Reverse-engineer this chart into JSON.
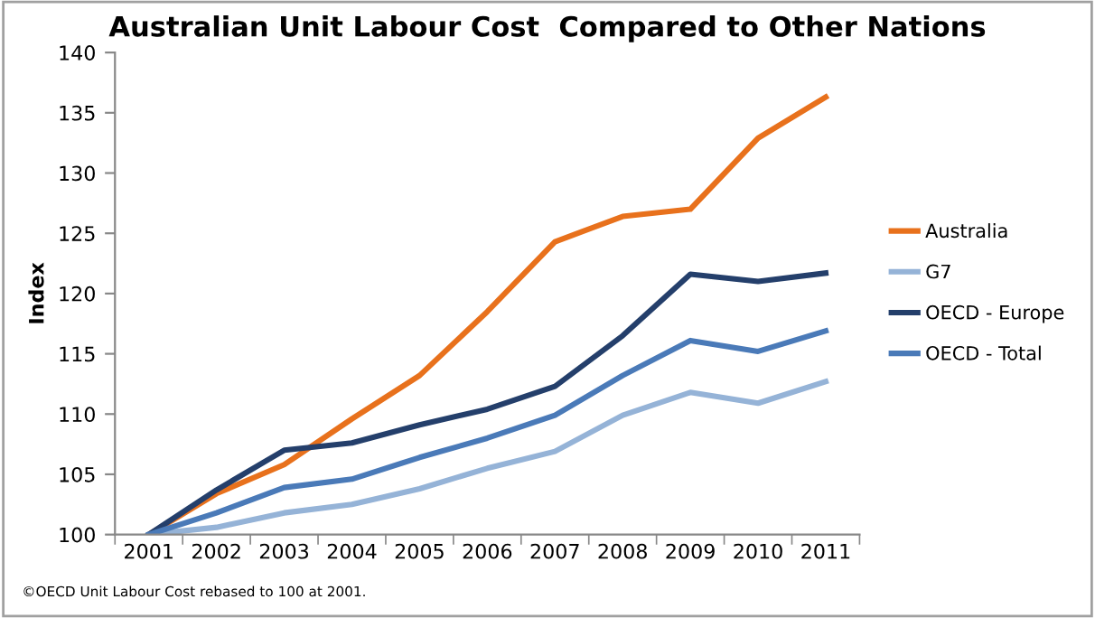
{
  "chart_data": {
    "type": "line",
    "title": "Australian Unit Labour Cost  Compared to Other Nations",
    "ylabel": "Index",
    "categories": [
      "2001",
      "2002",
      "2003",
      "2004",
      "2005",
      "2006",
      "2007",
      "2008",
      "2009",
      "2010",
      "2011"
    ],
    "series": [
      {
        "name": "Australia",
        "color": "#e8711c",
        "values": [
          100,
          103.4,
          105.8,
          109.6,
          113.2,
          118.5,
          124.3,
          126.4,
          127.0,
          132.9,
          136.3
        ]
      },
      {
        "name": "G7",
        "color": "#95b3d7",
        "values": [
          100,
          100.6,
          101.8,
          102.5,
          103.8,
          105.5,
          106.9,
          109.9,
          111.8,
          110.9,
          112.7
        ]
      },
      {
        "name": "OECD - Europe",
        "color": "#243f6b",
        "values": [
          100,
          103.7,
          107.0,
          107.6,
          109.1,
          110.4,
          112.3,
          116.5,
          121.6,
          121.0,
          121.7
        ]
      },
      {
        "name": "OECD - Total",
        "color": "#4a7ab8",
        "values": [
          100,
          101.8,
          103.9,
          104.6,
          106.4,
          108.0,
          109.9,
          113.2,
          116.1,
          115.2,
          116.9
        ]
      }
    ],
    "ylim": [
      100,
      140
    ],
    "yticks": [
      100,
      105,
      110,
      115,
      120,
      125,
      130,
      135,
      140
    ],
    "grid": false,
    "legend": "right",
    "marker": "none",
    "line_style": "solid",
    "annotations": [
      "©OECD Unit Labour Cost rebased to 100 at 2001."
    ]
  }
}
